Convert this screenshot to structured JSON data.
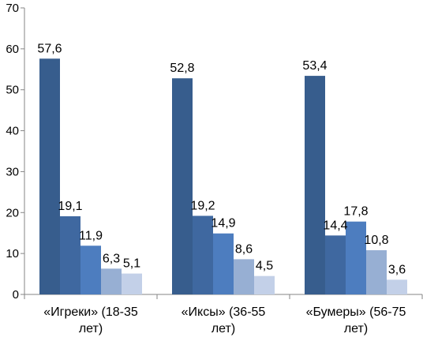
{
  "chart_data": {
    "type": "bar",
    "categories": [
      [
        "«Игреки» (18-35",
        "лет)"
      ],
      [
        "«Иксы» (36-55",
        "лет)"
      ],
      [
        "«Бумеры» (56-75",
        "лет)"
      ]
    ],
    "series": [
      {
        "values": [
          57.6,
          52.8,
          53.4
        ],
        "labels": [
          "57,6",
          "52,8",
          "53,4"
        ],
        "color": "#375D8D"
      },
      {
        "values": [
          19.1,
          19.2,
          14.4
        ],
        "labels": [
          "19,1",
          "19,2",
          "14,4"
        ],
        "color": "#3F68A0"
      },
      {
        "values": [
          11.9,
          14.9,
          17.8
        ],
        "labels": [
          "11,9",
          "14,9",
          "17,8"
        ],
        "color": "#4D7DBF"
      },
      {
        "values": [
          6.3,
          8.6,
          10.8
        ],
        "labels": [
          "6,3",
          "8,6",
          "10,8"
        ],
        "color": "#97AFD3"
      },
      {
        "values": [
          5.1,
          4.5,
          3.6
        ],
        "labels": [
          "5,1",
          "4,5",
          "3,6"
        ],
        "color": "#C3D0E8"
      }
    ],
    "ylim": [
      0,
      70
    ],
    "yticks": [
      0,
      10,
      20,
      30,
      40,
      50,
      60,
      70
    ],
    "grid": false,
    "legend": "none"
  }
}
